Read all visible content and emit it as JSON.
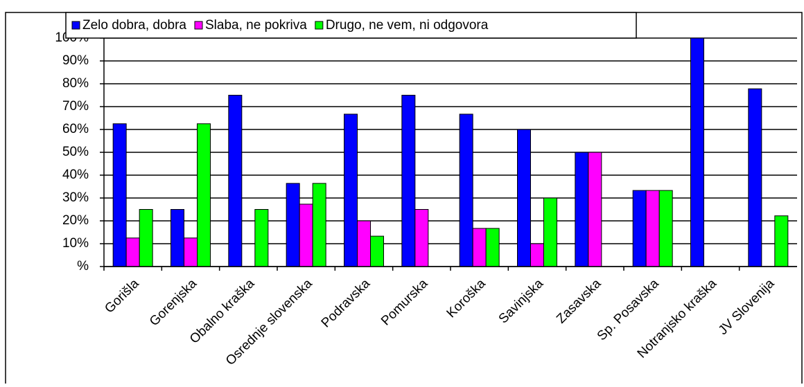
{
  "chart_data": {
    "type": "bar",
    "categories": [
      "Gorišla",
      "Gorenjska",
      "Obalno kraška",
      "Osrednje slovenska",
      "Podravska",
      "Pomurska",
      "Koroška",
      "Savinjska",
      "Zasavska",
      "Sp. Posavska",
      "Notranjsko kraška",
      "JV Slovenija"
    ],
    "series": [
      {
        "name": "Zelo dobra, dobra",
        "color": "#0000ff",
        "values": [
          62.5,
          25,
          75,
          36.4,
          66.7,
          75,
          66.7,
          60,
          50,
          33.3,
          100,
          77.8
        ]
      },
      {
        "name": "Slaba, ne pokriva",
        "color": "#ff00ff",
        "values": [
          12.5,
          12.5,
          0,
          27.3,
          20,
          25,
          16.7,
          10,
          50,
          33.3,
          0,
          0
        ]
      },
      {
        "name": "Drugo, ne vem, ni odgovora",
        "color": "#00ff00",
        "values": [
          25,
          62.5,
          25,
          36.4,
          13.3,
          0,
          16.7,
          30,
          0,
          33.3,
          0,
          22.2
        ]
      }
    ],
    "ylim": [
      0,
      100
    ],
    "yticks": [
      {
        "value": 0,
        "label": "%"
      },
      {
        "value": 10,
        "label": "10%"
      },
      {
        "value": 20,
        "label": "20%"
      },
      {
        "value": 30,
        "label": "30%"
      },
      {
        "value": 40,
        "label": "40%"
      },
      {
        "value": 50,
        "label": "50%"
      },
      {
        "value": 60,
        "label": "60%"
      },
      {
        "value": 70,
        "label": "70%"
      },
      {
        "value": 80,
        "label": "80%"
      },
      {
        "value": 90,
        "label": "90%"
      },
      {
        "value": 100,
        "label": "100%"
      }
    ],
    "grid": true,
    "legend": "top"
  }
}
